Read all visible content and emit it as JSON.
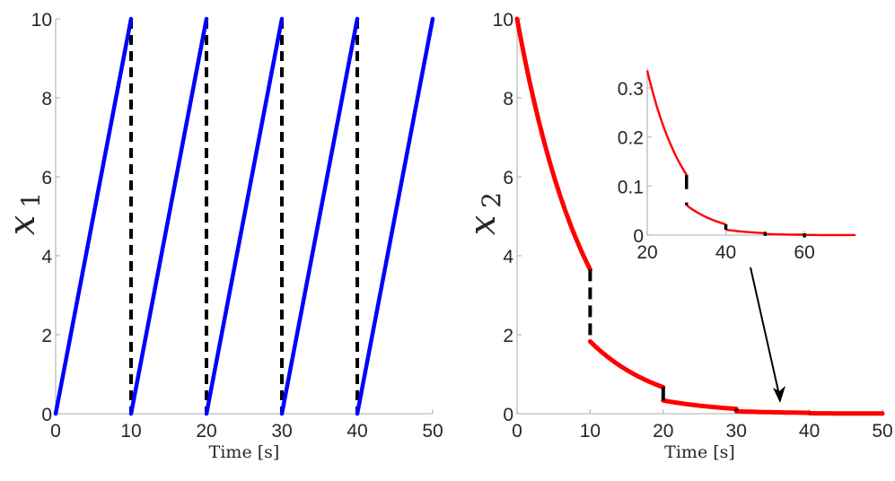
{
  "chart_data": [
    {
      "type": "line",
      "panel": "left",
      "title": "",
      "xlabel": "Time [s]",
      "ylabel": "x_1",
      "ylabel_main": "x",
      "ylabel_sub": "1",
      "xlim": [
        0,
        50
      ],
      "ylim": [
        0,
        10
      ],
      "xticks": [
        "0",
        "10",
        "20",
        "30",
        "40",
        "50"
      ],
      "yticks": [
        "0",
        "2",
        "4",
        "6",
        "8",
        "10"
      ],
      "grid": false,
      "series": [
        {
          "name": "x1",
          "color": "#0000ff",
          "style": "solid",
          "segments": [
            {
              "x": [
                0,
                10
              ],
              "y": [
                0,
                10
              ]
            },
            {
              "x": [
                10,
                20
              ],
              "y": [
                0,
                10
              ]
            },
            {
              "x": [
                20,
                30
              ],
              "y": [
                0,
                10
              ]
            },
            {
              "x": [
                30,
                40
              ],
              "y": [
                0,
                10
              ]
            },
            {
              "x": [
                40,
                50
              ],
              "y": [
                0,
                10
              ]
            }
          ]
        },
        {
          "name": "resets",
          "color": "#000000",
          "style": "dashed",
          "segments": [
            {
              "x": [
                10,
                10
              ],
              "y": [
                10,
                0
              ]
            },
            {
              "x": [
                20,
                20
              ],
              "y": [
                10,
                0
              ]
            },
            {
              "x": [
                30,
                30
              ],
              "y": [
                10,
                0
              ]
            },
            {
              "x": [
                40,
                40
              ],
              "y": [
                10,
                0
              ]
            }
          ]
        }
      ]
    },
    {
      "type": "line",
      "panel": "right",
      "title": "",
      "xlabel": "Time [s]",
      "ylabel": "x_2",
      "ylabel_main": "x",
      "ylabel_sub": "2",
      "xlim": [
        0,
        50
      ],
      "ylim": [
        0,
        10
      ],
      "xticks": [
        "0",
        "10",
        "20",
        "30",
        "40",
        "50"
      ],
      "yticks": [
        "0",
        "2",
        "4",
        "6",
        "8",
        "10"
      ],
      "grid": false,
      "series": [
        {
          "name": "x2",
          "color": "#ff0000",
          "style": "solid",
          "segments": [
            {
              "x": [
                0,
                10
              ],
              "y": [
                10,
                3.65
              ],
              "decay": 0.1
            },
            {
              "x": [
                10,
                20
              ],
              "y": [
                1.83,
                0.67
              ],
              "decay": 0.1
            },
            {
              "x": [
                20,
                30
              ],
              "y": [
                0.335,
                0.123
              ],
              "decay": 0.1
            },
            {
              "x": [
                30,
                40
              ],
              "y": [
                0.061,
                0.022
              ],
              "decay": 0.1
            },
            {
              "x": [
                40,
                50
              ],
              "y": [
                0.011,
                0.004
              ],
              "decay": 0.1
            }
          ]
        },
        {
          "name": "resets",
          "color": "#000000",
          "style": "dashed",
          "segments": [
            {
              "x": [
                10,
                10
              ],
              "y": [
                3.65,
                1.83
              ]
            },
            {
              "x": [
                20,
                20
              ],
              "y": [
                0.67,
                0.335
              ]
            },
            {
              "x": [
                30,
                30
              ],
              "y": [
                0.123,
                0.061
              ]
            },
            {
              "x": [
                40,
                40
              ],
              "y": [
                0.022,
                0.011
              ]
            }
          ]
        }
      ],
      "annotations": [
        {
          "type": "arrow",
          "from_inset": true,
          "points_to": {
            "x": 36,
            "y": 0.3
          }
        }
      ],
      "inset": {
        "xlim": [
          20,
          73
        ],
        "ylim": [
          0,
          0.34
        ],
        "xticks": [
          "20",
          "40",
          "60"
        ],
        "yticks": [
          "0",
          "0.1",
          "0.2",
          "0.3"
        ],
        "series": [
          {
            "name": "x2-zoom",
            "color": "#ff0000",
            "segments": [
              {
                "x": [
                  20,
                  30
                ],
                "y": [
                  0.335,
                  0.123
                ]
              },
              {
                "x": [
                  30,
                  40
                ],
                "y": [
                  0.061,
                  0.022
                ]
              },
              {
                "x": [
                  40,
                  50
                ],
                "y": [
                  0.011,
                  0.004
                ]
              },
              {
                "x": [
                  50,
                  60
                ],
                "y": [
                  0.002,
                  0.0008
                ]
              },
              {
                "x": [
                  60,
                  73
                ],
                "y": [
                  0.0004,
                  0.0001
                ]
              }
            ]
          },
          {
            "name": "resets",
            "color": "#000000",
            "segments": [
              {
                "x": [
                  30,
                  30
                ],
                "y": [
                  0.123,
                  0.061
                ]
              },
              {
                "x": [
                  40,
                  40
                ],
                "y": [
                  0.022,
                  0.011
                ]
              },
              {
                "x": [
                  50,
                  50
                ],
                "y": [
                  0.004,
                  0.002
                ]
              },
              {
                "x": [
                  60,
                  60
                ],
                "y": [
                  0.0008,
                  0.0004
                ]
              }
            ]
          }
        ]
      }
    }
  ]
}
